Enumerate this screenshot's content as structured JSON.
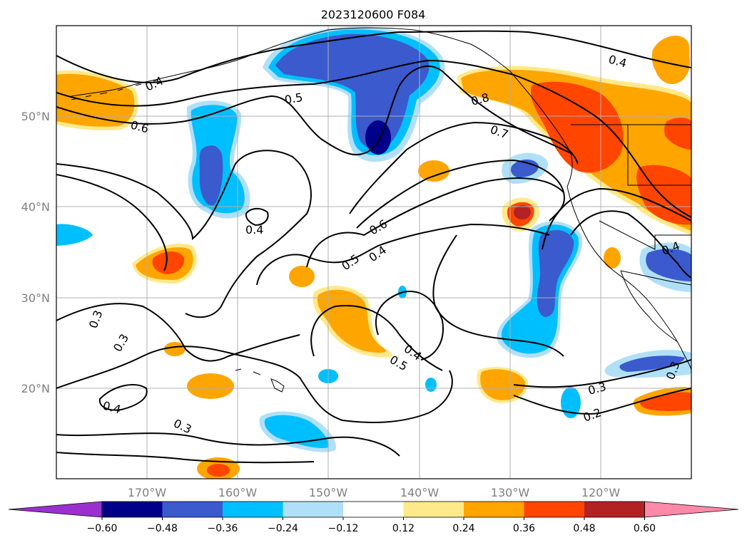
{
  "title": "2023120600 F084",
  "map": {
    "lat_ticks": [
      "50°N",
      "40°N",
      "30°N",
      "20°N"
    ],
    "lat_values": [
      50,
      40,
      30,
      20
    ],
    "lon_ticks": [
      "170°W",
      "160°W",
      "150°W",
      "140°W",
      "130°W",
      "120°W"
    ],
    "lon_values": [
      -170,
      -160,
      -150,
      -140,
      -130,
      -120
    ],
    "extent": {
      "lon": [
        -180,
        -110
      ],
      "lat": [
        10,
        60
      ]
    },
    "gridlines": true,
    "coastlines": true
  },
  "contour_labels": [
    "0.4",
    "0.5",
    "0.6",
    "0.4",
    "0.8",
    "0.7",
    "0.4",
    "0.6",
    "0.5",
    "0.4",
    "0.3",
    "0.3",
    "0.4",
    "0.3",
    "0.4",
    "0.5",
    "0.3",
    "0.2",
    "0.3",
    "0.4"
  ],
  "colorbar": {
    "ticks": [
      "−0.60",
      "−0.48",
      "−0.36",
      "−0.24",
      "−0.12",
      "0.12",
      "0.24",
      "0.36",
      "0.48",
      "0.60"
    ],
    "colors": [
      "#9b30d0",
      "#00008b",
      "#3a5acd",
      "#00bfff",
      "#b0e0f8",
      "#ffffff",
      "#ffe98a",
      "#ffa500",
      "#ff4500",
      "#b22222",
      "#ff89a8"
    ],
    "extend": "both"
  },
  "colors": {
    "neg_strong": "#00008b",
    "neg_mid": "#3a5acd",
    "neg_light": "#00bfff",
    "neg_pale": "#b0e0f8",
    "pos_pale": "#ffe98a",
    "pos_light": "#ffa500",
    "pos_mid": "#ff4500",
    "pos_strong": "#b22222"
  }
}
